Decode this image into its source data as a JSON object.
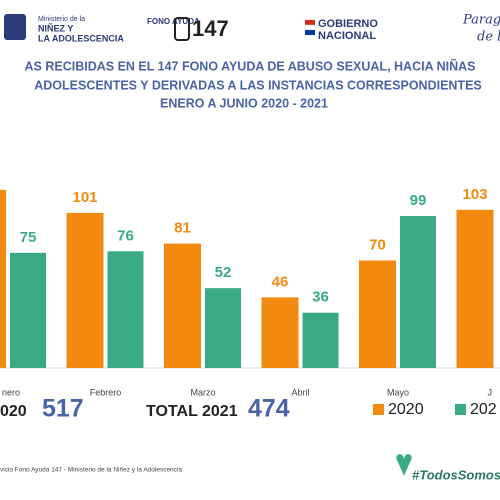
{
  "header": {
    "ministry": [
      "Ministerio de la",
      "NIÑEZ Y",
      "LA ADOLESCENCIA"
    ],
    "fono": "FONO AYUDA",
    "fono_number": "147",
    "gobierno": [
      "GOBIERNO",
      "NACIONAL"
    ],
    "slogan": [
      "Paragu",
      "de la"
    ]
  },
  "chart_data": {
    "type": "bar",
    "title": [
      "AS RECIBIDAS EN EL 147 FONO AYUDA DE ABUSO SEXUAL, HACIA NIÑAS",
      "ADOLESCENTES  Y DERIVADAS A LAS INSTANCIAS CORRESPONDIENTES",
      "ENERO A JUNIO 2020 - 2021"
    ],
    "categories": [
      "nero",
      "Febrero",
      "Marzo",
      "Abril",
      "Mayo",
      "J"
    ],
    "series": [
      {
        "name": "2020",
        "color": "#f28a10",
        "values": [
          116,
          101,
          81,
          46,
          70,
          103
        ],
        "value_labels": [
          null,
          "101",
          "81",
          "46",
          "70",
          "103"
        ]
      },
      {
        "name": "202",
        "color": "#3aaa86",
        "values": [
          75,
          76,
          52,
          36,
          99,
          null
        ],
        "value_labels": [
          "75",
          "76",
          "52",
          "36",
          "99",
          null
        ]
      }
    ],
    "ylim": [
      0,
      140
    ],
    "legend": "bottom-right"
  },
  "totals": [
    {
      "label": "020",
      "value": "517"
    },
    {
      "label": "TOTAL 2021",
      "value": "474"
    }
  ],
  "footer": {
    "source": "vicio Fono Ayuda 147 - Ministerio de la Niñez y la Adolescencia",
    "hashtag": "#TodosSomosRespo"
  }
}
